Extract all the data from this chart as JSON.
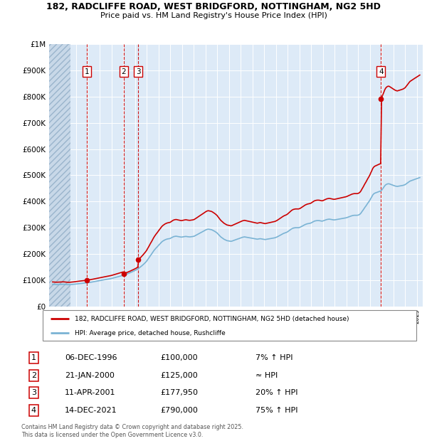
{
  "title_line1": "182, RADCLIFFE ROAD, WEST BRIDGFORD, NOTTINGHAM, NG2 5HD",
  "title_line2": "Price paid vs. HM Land Registry's House Price Index (HPI)",
  "ylim": [
    0,
    1000000
  ],
  "yticks": [
    0,
    100000,
    200000,
    300000,
    400000,
    500000,
    600000,
    700000,
    800000,
    900000,
    1000000
  ],
  "ytick_labels": [
    "£0",
    "£100K",
    "£200K",
    "£300K",
    "£400K",
    "£500K",
    "£600K",
    "£700K",
    "£800K",
    "£900K",
    "£1M"
  ],
  "xlim_start": 1993.7,
  "xlim_end": 2025.5,
  "sale_dates": [
    1996.92,
    2000.05,
    2001.27,
    2021.95
  ],
  "sale_prices": [
    100000,
    125000,
    177950,
    790000
  ],
  "sale_labels": [
    "1",
    "2",
    "3",
    "4"
  ],
  "hpi_color": "#7ab3d4",
  "property_color": "#cc0000",
  "background_color": "#ddeaf7",
  "grid_color": "#ffffff",
  "legend_label_property": "182, RADCLIFFE ROAD, WEST BRIDGFORD, NOTTINGHAM, NG2 5HD (detached house)",
  "legend_label_hpi": "HPI: Average price, detached house, Rushcliffe",
  "table_rows": [
    [
      "1",
      "06-DEC-1996",
      "£100,000",
      "7% ↑ HPI"
    ],
    [
      "2",
      "21-JAN-2000",
      "£125,000",
      "≈ HPI"
    ],
    [
      "3",
      "11-APR-2001",
      "£177,950",
      "20% ↑ HPI"
    ],
    [
      "4",
      "14-DEC-2021",
      "£790,000",
      "75% ↑ HPI"
    ]
  ],
  "footnote": "Contains HM Land Registry data © Crown copyright and database right 2025.\nThis data is licensed under the Open Government Licence v3.0.",
  "hpi_index_data": [
    [
      1994.0,
      62.5
    ],
    [
      1994.08,
      62.3
    ],
    [
      1994.17,
      62.1
    ],
    [
      1994.25,
      62.0
    ],
    [
      1994.33,
      61.8
    ],
    [
      1994.42,
      61.9
    ],
    [
      1994.5,
      62.0
    ],
    [
      1994.58,
      62.2
    ],
    [
      1994.67,
      62.3
    ],
    [
      1994.75,
      62.5
    ],
    [
      1994.83,
      62.6
    ],
    [
      1994.92,
      62.8
    ],
    [
      1995.0,
      62.5
    ],
    [
      1995.08,
      62.3
    ],
    [
      1995.17,
      62.0
    ],
    [
      1995.25,
      61.8
    ],
    [
      1995.33,
      61.5
    ],
    [
      1995.42,
      61.6
    ],
    [
      1995.5,
      61.8
    ],
    [
      1995.58,
      62.0
    ],
    [
      1995.67,
      62.3
    ],
    [
      1995.75,
      62.5
    ],
    [
      1995.83,
      62.8
    ],
    [
      1995.92,
      63.2
    ],
    [
      1996.0,
      63.5
    ],
    [
      1996.08,
      63.8
    ],
    [
      1996.17,
      64.2
    ],
    [
      1996.25,
      64.5
    ],
    [
      1996.33,
      64.8
    ],
    [
      1996.42,
      65.0
    ],
    [
      1996.5,
      65.3
    ],
    [
      1996.58,
      65.6
    ],
    [
      1996.67,
      65.9
    ],
    [
      1996.75,
      66.2
    ],
    [
      1996.83,
      66.5
    ],
    [
      1996.92,
      66.8
    ],
    [
      1997.0,
      67.2
    ],
    [
      1997.08,
      67.6
    ],
    [
      1997.17,
      68.0
    ],
    [
      1997.25,
      68.5
    ],
    [
      1997.33,
      69.0
    ],
    [
      1997.42,
      69.5
    ],
    [
      1997.5,
      70.0
    ],
    [
      1997.58,
      70.5
    ],
    [
      1997.67,
      71.0
    ],
    [
      1997.75,
      71.5
    ],
    [
      1997.83,
      72.0
    ],
    [
      1997.92,
      72.5
    ],
    [
      1998.0,
      73.0
    ],
    [
      1998.08,
      73.5
    ],
    [
      1998.17,
      74.0
    ],
    [
      1998.25,
      74.5
    ],
    [
      1998.33,
      75.0
    ],
    [
      1998.42,
      75.5
    ],
    [
      1998.5,
      76.0
    ],
    [
      1998.58,
      76.5
    ],
    [
      1998.67,
      77.0
    ],
    [
      1998.75,
      77.5
    ],
    [
      1998.83,
      78.0
    ],
    [
      1998.92,
      78.5
    ],
    [
      1999.0,
      79.0
    ],
    [
      1999.08,
      79.8
    ],
    [
      1999.17,
      80.5
    ],
    [
      1999.25,
      81.2
    ],
    [
      1999.33,
      82.0
    ],
    [
      1999.42,
      82.8
    ],
    [
      1999.5,
      83.5
    ],
    [
      1999.58,
      84.2
    ],
    [
      1999.67,
      85.0
    ],
    [
      1999.75,
      85.8
    ],
    [
      1999.83,
      86.5
    ],
    [
      1999.92,
      87.2
    ],
    [
      2000.0,
      88.0
    ],
    [
      2000.08,
      89.0
    ],
    [
      2000.17,
      90.0
    ],
    [
      2000.25,
      91.0
    ],
    [
      2000.33,
      92.0
    ],
    [
      2000.42,
      93.0
    ],
    [
      2000.5,
      94.0
    ],
    [
      2000.58,
      95.2
    ],
    [
      2000.67,
      96.5
    ],
    [
      2000.75,
      97.8
    ],
    [
      2000.83,
      99.0
    ],
    [
      2000.92,
      100.2
    ],
    [
      2001.0,
      101.5
    ],
    [
      2001.08,
      103.0
    ],
    [
      2001.17,
      104.5
    ],
    [
      2001.25,
      106.0
    ],
    [
      2001.33,
      108.0
    ],
    [
      2001.42,
      110.0
    ],
    [
      2001.5,
      112.0
    ],
    [
      2001.58,
      114.5
    ],
    [
      2001.67,
      117.0
    ],
    [
      2001.75,
      119.5
    ],
    [
      2001.83,
      122.0
    ],
    [
      2001.92,
      125.0
    ],
    [
      2002.0,
      128.0
    ],
    [
      2002.08,
      132.0
    ],
    [
      2002.17,
      136.0
    ],
    [
      2002.25,
      140.0
    ],
    [
      2002.33,
      144.0
    ],
    [
      2002.42,
      148.0
    ],
    [
      2002.5,
      152.0
    ],
    [
      2002.58,
      156.0
    ],
    [
      2002.67,
      160.0
    ],
    [
      2002.75,
      163.0
    ],
    [
      2002.83,
      166.0
    ],
    [
      2002.92,
      169.0
    ],
    [
      2003.0,
      172.0
    ],
    [
      2003.08,
      175.0
    ],
    [
      2003.17,
      178.0
    ],
    [
      2003.25,
      181.0
    ],
    [
      2003.33,
      183.5
    ],
    [
      2003.42,
      185.5
    ],
    [
      2003.5,
      187.0
    ],
    [
      2003.58,
      188.5
    ],
    [
      2003.67,
      189.5
    ],
    [
      2003.75,
      190.5
    ],
    [
      2003.83,
      191.0
    ],
    [
      2003.92,
      191.5
    ],
    [
      2004.0,
      192.0
    ],
    [
      2004.08,
      193.5
    ],
    [
      2004.17,
      195.0
    ],
    [
      2004.25,
      196.5
    ],
    [
      2004.33,
      197.5
    ],
    [
      2004.42,
      198.0
    ],
    [
      2004.5,
      198.5
    ],
    [
      2004.58,
      198.0
    ],
    [
      2004.67,
      197.5
    ],
    [
      2004.75,
      197.0
    ],
    [
      2004.83,
      196.5
    ],
    [
      2004.92,
      196.0
    ],
    [
      2005.0,
      196.0
    ],
    [
      2005.08,
      196.5
    ],
    [
      2005.17,
      197.0
    ],
    [
      2005.25,
      197.5
    ],
    [
      2005.33,
      197.8
    ],
    [
      2005.42,
      197.5
    ],
    [
      2005.5,
      197.0
    ],
    [
      2005.58,
      196.8
    ],
    [
      2005.67,
      196.5
    ],
    [
      2005.75,
      196.8
    ],
    [
      2005.83,
      197.0
    ],
    [
      2005.92,
      197.5
    ],
    [
      2006.0,
      198.0
    ],
    [
      2006.08,
      199.0
    ],
    [
      2006.17,
      200.5
    ],
    [
      2006.25,
      202.0
    ],
    [
      2006.33,
      203.5
    ],
    [
      2006.42,
      205.0
    ],
    [
      2006.5,
      206.5
    ],
    [
      2006.58,
      208.0
    ],
    [
      2006.67,
      209.5
    ],
    [
      2006.75,
      211.0
    ],
    [
      2006.83,
      212.5
    ],
    [
      2006.92,
      214.0
    ],
    [
      2007.0,
      215.5
    ],
    [
      2007.08,
      217.0
    ],
    [
      2007.17,
      218.0
    ],
    [
      2007.25,
      218.5
    ],
    [
      2007.33,
      218.0
    ],
    [
      2007.42,
      217.5
    ],
    [
      2007.5,
      217.0
    ],
    [
      2007.58,
      216.0
    ],
    [
      2007.67,
      214.5
    ],
    [
      2007.75,
      213.0
    ],
    [
      2007.83,
      211.5
    ],
    [
      2007.92,
      209.5
    ],
    [
      2008.0,
      207.5
    ],
    [
      2008.08,
      204.5
    ],
    [
      2008.17,
      201.5
    ],
    [
      2008.25,
      198.5
    ],
    [
      2008.33,
      196.0
    ],
    [
      2008.42,
      194.0
    ],
    [
      2008.5,
      192.0
    ],
    [
      2008.58,
      190.0
    ],
    [
      2008.67,
      188.5
    ],
    [
      2008.75,
      187.0
    ],
    [
      2008.83,
      186.0
    ],
    [
      2008.92,
      185.5
    ],
    [
      2009.0,
      185.0
    ],
    [
      2009.08,
      184.5
    ],
    [
      2009.17,
      184.0
    ],
    [
      2009.25,
      184.5
    ],
    [
      2009.33,
      185.5
    ],
    [
      2009.42,
      186.5
    ],
    [
      2009.5,
      187.5
    ],
    [
      2009.58,
      188.5
    ],
    [
      2009.67,
      189.5
    ],
    [
      2009.75,
      190.5
    ],
    [
      2009.83,
      191.5
    ],
    [
      2009.92,
      192.5
    ],
    [
      2010.0,
      193.5
    ],
    [
      2010.08,
      194.5
    ],
    [
      2010.17,
      195.5
    ],
    [
      2010.25,
      196.0
    ],
    [
      2010.33,
      196.5
    ],
    [
      2010.42,
      196.0
    ],
    [
      2010.5,
      195.5
    ],
    [
      2010.58,
      195.0
    ],
    [
      2010.67,
      194.5
    ],
    [
      2010.75,
      194.0
    ],
    [
      2010.83,
      193.5
    ],
    [
      2010.92,
      193.0
    ],
    [
      2011.0,
      192.5
    ],
    [
      2011.08,
      192.0
    ],
    [
      2011.17,
      191.5
    ],
    [
      2011.25,
      191.0
    ],
    [
      2011.33,
      190.5
    ],
    [
      2011.42,
      190.0
    ],
    [
      2011.5,
      190.5
    ],
    [
      2011.58,
      191.0
    ],
    [
      2011.67,
      191.5
    ],
    [
      2011.75,
      191.0
    ],
    [
      2011.83,
      190.5
    ],
    [
      2011.92,
      190.0
    ],
    [
      2012.0,
      189.5
    ],
    [
      2012.08,
      189.0
    ],
    [
      2012.17,
      189.5
    ],
    [
      2012.25,
      190.0
    ],
    [
      2012.33,
      190.5
    ],
    [
      2012.42,
      191.0
    ],
    [
      2012.5,
      191.5
    ],
    [
      2012.58,
      192.0
    ],
    [
      2012.67,
      192.5
    ],
    [
      2012.75,
      193.0
    ],
    [
      2012.83,
      193.5
    ],
    [
      2012.92,
      194.0
    ],
    [
      2013.0,
      195.0
    ],
    [
      2013.08,
      196.0
    ],
    [
      2013.17,
      197.5
    ],
    [
      2013.25,
      199.0
    ],
    [
      2013.33,
      200.5
    ],
    [
      2013.42,
      202.0
    ],
    [
      2013.5,
      203.5
    ],
    [
      2013.58,
      205.0
    ],
    [
      2013.67,
      206.5
    ],
    [
      2013.75,
      207.5
    ],
    [
      2013.83,
      208.5
    ],
    [
      2013.92,
      209.5
    ],
    [
      2014.0,
      211.0
    ],
    [
      2014.08,
      213.0
    ],
    [
      2014.17,
      215.0
    ],
    [
      2014.25,
      217.0
    ],
    [
      2014.33,
      219.0
    ],
    [
      2014.42,
      220.5
    ],
    [
      2014.5,
      221.5
    ],
    [
      2014.58,
      222.0
    ],
    [
      2014.67,
      222.5
    ],
    [
      2014.75,
      222.5
    ],
    [
      2014.83,
      222.5
    ],
    [
      2014.92,
      222.5
    ],
    [
      2015.0,
      223.0
    ],
    [
      2015.08,
      224.0
    ],
    [
      2015.17,
      225.5
    ],
    [
      2015.25,
      227.0
    ],
    [
      2015.33,
      228.5
    ],
    [
      2015.42,
      230.0
    ],
    [
      2015.5,
      231.5
    ],
    [
      2015.58,
      232.5
    ],
    [
      2015.67,
      233.5
    ],
    [
      2015.75,
      234.0
    ],
    [
      2015.83,
      234.5
    ],
    [
      2015.92,
      235.0
    ],
    [
      2016.0,
      236.0
    ],
    [
      2016.08,
      237.5
    ],
    [
      2016.17,
      239.0
    ],
    [
      2016.25,
      240.5
    ],
    [
      2016.33,
      241.5
    ],
    [
      2016.42,
      242.0
    ],
    [
      2016.5,
      242.5
    ],
    [
      2016.58,
      242.5
    ],
    [
      2016.67,
      242.5
    ],
    [
      2016.75,
      242.0
    ],
    [
      2016.83,
      241.5
    ],
    [
      2016.92,
      241.0
    ],
    [
      2017.0,
      241.5
    ],
    [
      2017.08,
      242.5
    ],
    [
      2017.17,
      243.5
    ],
    [
      2017.25,
      244.5
    ],
    [
      2017.33,
      245.5
    ],
    [
      2017.42,
      246.0
    ],
    [
      2017.5,
      246.5
    ],
    [
      2017.58,
      246.5
    ],
    [
      2017.67,
      246.0
    ],
    [
      2017.75,
      245.5
    ],
    [
      2017.83,
      245.0
    ],
    [
      2017.92,
      244.5
    ],
    [
      2018.0,
      244.5
    ],
    [
      2018.08,
      245.0
    ],
    [
      2018.17,
      245.5
    ],
    [
      2018.25,
      246.0
    ],
    [
      2018.33,
      246.5
    ],
    [
      2018.42,
      247.0
    ],
    [
      2018.5,
      247.5
    ],
    [
      2018.58,
      248.0
    ],
    [
      2018.67,
      248.5
    ],
    [
      2018.75,
      249.0
    ],
    [
      2018.83,
      249.5
    ],
    [
      2018.92,
      250.0
    ],
    [
      2019.0,
      250.5
    ],
    [
      2019.08,
      251.5
    ],
    [
      2019.17,
      252.5
    ],
    [
      2019.25,
      253.5
    ],
    [
      2019.33,
      254.5
    ],
    [
      2019.42,
      255.5
    ],
    [
      2019.5,
      256.5
    ],
    [
      2019.58,
      257.0
    ],
    [
      2019.67,
      257.5
    ],
    [
      2019.75,
      257.5
    ],
    [
      2019.83,
      257.5
    ],
    [
      2019.92,
      257.5
    ],
    [
      2020.0,
      258.0
    ],
    [
      2020.08,
      259.0
    ],
    [
      2020.17,
      261.0
    ],
    [
      2020.25,
      264.0
    ],
    [
      2020.33,
      268.0
    ],
    [
      2020.42,
      272.0
    ],
    [
      2020.5,
      276.0
    ],
    [
      2020.58,
      280.0
    ],
    [
      2020.67,
      284.0
    ],
    [
      2020.75,
      288.0
    ],
    [
      2020.83,
      292.0
    ],
    [
      2020.92,
      296.0
    ],
    [
      2021.0,
      300.0
    ],
    [
      2021.08,
      305.0
    ],
    [
      2021.17,
      310.0
    ],
    [
      2021.25,
      315.0
    ],
    [
      2021.33,
      318.0
    ],
    [
      2021.42,
      320.0
    ],
    [
      2021.5,
      321.0
    ],
    [
      2021.58,
      322.0
    ],
    [
      2021.67,
      323.0
    ],
    [
      2021.75,
      324.0
    ],
    [
      2021.83,
      325.0
    ],
    [
      2021.92,
      326.0
    ],
    [
      2022.0,
      328.0
    ],
    [
      2022.08,
      332.0
    ],
    [
      2022.17,
      336.0
    ],
    [
      2022.25,
      340.0
    ],
    [
      2022.33,
      343.0
    ],
    [
      2022.42,
      345.0
    ],
    [
      2022.5,
      346.0
    ],
    [
      2022.58,
      346.5
    ],
    [
      2022.67,
      346.0
    ],
    [
      2022.75,
      345.0
    ],
    [
      2022.83,
      344.0
    ],
    [
      2022.92,
      343.0
    ],
    [
      2023.0,
      342.0
    ],
    [
      2023.08,
      341.0
    ],
    [
      2023.17,
      340.0
    ],
    [
      2023.25,
      339.5
    ],
    [
      2023.33,
      339.0
    ],
    [
      2023.42,
      339.5
    ],
    [
      2023.5,
      340.0
    ],
    [
      2023.58,
      340.5
    ],
    [
      2023.67,
      341.0
    ],
    [
      2023.75,
      341.5
    ],
    [
      2023.83,
      342.0
    ],
    [
      2023.92,
      343.0
    ],
    [
      2024.0,
      344.0
    ],
    [
      2024.08,
      346.0
    ],
    [
      2024.17,
      348.0
    ],
    [
      2024.25,
      350.0
    ],
    [
      2024.33,
      352.0
    ],
    [
      2024.42,
      354.0
    ],
    [
      2024.5,
      355.0
    ],
    [
      2024.58,
      356.0
    ],
    [
      2024.67,
      357.0
    ],
    [
      2024.75,
      358.0
    ],
    [
      2024.83,
      359.0
    ],
    [
      2024.92,
      360.0
    ],
    [
      2025.0,
      361.0
    ],
    [
      2025.08,
      362.0
    ],
    [
      2025.17,
      363.0
    ],
    [
      2025.25,
      364.0
    ]
  ],
  "hpi_scale": 1350,
  "sale1_hpi_index": 66.8,
  "sale2_hpi_index": 88.5,
  "sale3_hpi_index": 106.5,
  "sale4_hpi_index": 326.0
}
